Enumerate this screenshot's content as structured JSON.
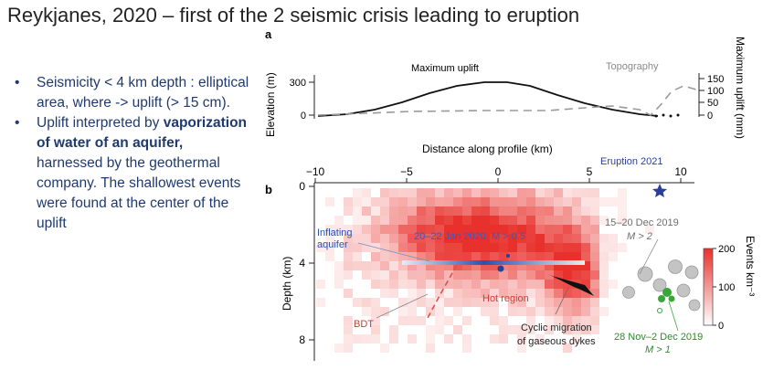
{
  "title": "Reykjanes, 2020 – first of the 2 seismic crisis leading to eruption",
  "bullets": [
    {
      "text": "Seismicity < 4 km depth : elliptical area, where -> uplift (> 15 cm)."
    },
    {
      "pre": "Uplift interpreted by ",
      "bold": "vaporization of water of an aquifer,",
      "post": " harnessed by the geothermal company. The shallowest events were found at the center of the uplift"
    }
  ],
  "figure": {
    "panel_a": {
      "label": "a",
      "ylabel_left": "Elevation (m)",
      "ylabel_right": "Maximum uplift (mm)",
      "left_ticks": [
        "300",
        "0"
      ],
      "right_ticks": [
        "150",
        "100",
        "50",
        "0"
      ],
      "label_uplift": "Maximum uplift",
      "label_topo": "Topography"
    },
    "panel_b": {
      "label": "b",
      "xlabel": "Distance along profile (km)",
      "x_ticks": [
        "−10",
        "−5",
        "0",
        "5",
        "10"
      ],
      "ylabel": "Depth (km)",
      "y_ticks": [
        "0",
        "4",
        "8"
      ],
      "colorbar_label": "Events km⁻³",
      "colorbar_ticks": [
        "200",
        "100",
        "0"
      ],
      "annotations": {
        "eruption": "Eruption 2021",
        "aquifer_1": "Inflating",
        "aquifer_2": "aquifer",
        "jan2020": "20–22 Jan 2020, M > 0.5",
        "dec2019_1": "15–20 Dec 2019",
        "dec2019_2": "M > 2",
        "hot_region": "Hot region",
        "bdt": "BDT",
        "cyclic_1": "Cyclic migration",
        "cyclic_2": "of gaseous dykes",
        "nov2019_1": "28 Nov–2 Dec 2019",
        "nov2019_2": "M > 1"
      }
    },
    "colors": {
      "heat": "#e8312c",
      "aquifer_line": "#2f4fa8",
      "eruption_star": "#2a3f9a",
      "bdt_line": "#d9534f",
      "green_events": "#3aa63a",
      "gray_events": "#bdbdbd"
    }
  }
}
